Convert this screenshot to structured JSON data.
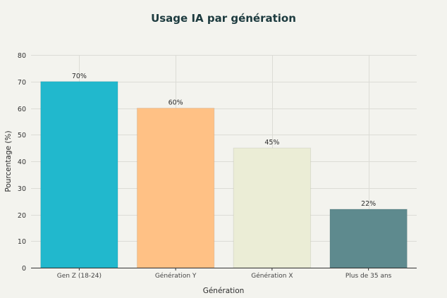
{
  "chart_data": {
    "type": "bar",
    "title": "Usage IA par génération",
    "xlabel": "Génération",
    "ylabel": "Pourcentage (%)",
    "categories": [
      "Gen Z (18-24)",
      "Génération Y",
      "Génération X",
      "Plus de 35 ans"
    ],
    "values": [
      70,
      60,
      45,
      22
    ],
    "data_labels": [
      "70%",
      "60%",
      "45%",
      "22%"
    ],
    "ylim": [
      0,
      80
    ],
    "yticks": [
      0,
      10,
      20,
      30,
      40,
      50,
      60,
      70,
      80
    ],
    "colors": [
      "#21b8cd",
      "#ffc185",
      "#ebedd6",
      "#5e8a8e"
    ],
    "grid": true,
    "legend": "none"
  }
}
